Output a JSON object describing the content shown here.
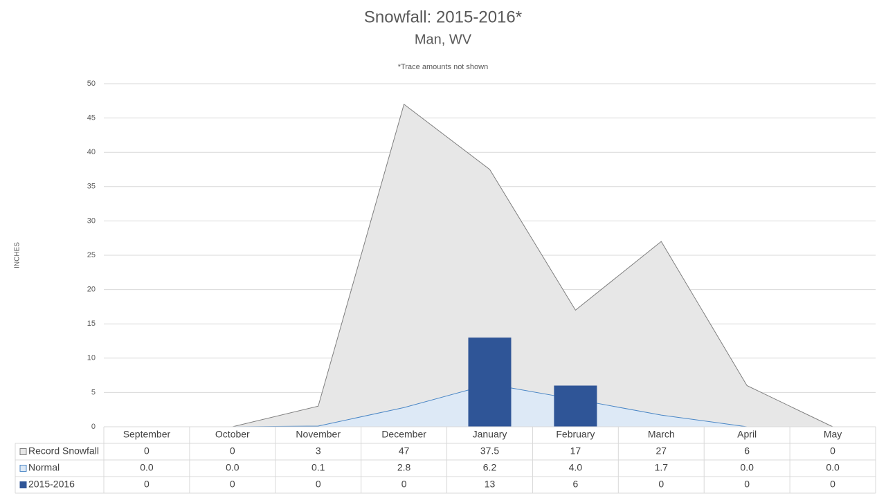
{
  "chart_data": {
    "type": "combo",
    "title": "Snowfall: 2015-2016*",
    "subtitle": "Man, WV",
    "annotation": "*Trace amounts not shown",
    "y_label": "INCHES",
    "categories": [
      "September",
      "October",
      "November",
      "December",
      "January",
      "February",
      "March",
      "April",
      "May"
    ],
    "series": [
      {
        "name": "Record Snowfall",
        "type": "area",
        "color": "#e7e7e7",
        "values": [
          0,
          0,
          3,
          47,
          37.5,
          17,
          27,
          6,
          0
        ]
      },
      {
        "name": "Normal",
        "type": "area",
        "color": "#dde9f6",
        "values": [
          0,
          0,
          0.1,
          2.8,
          6.2,
          4,
          1.7,
          0,
          0
        ],
        "value_labels": [
          "0.0",
          "0.0",
          "0.1",
          "2.8",
          "6.2",
          "4.0",
          "1.7",
          "0.0",
          "0.0"
        ]
      },
      {
        "name": "2015-2016",
        "type": "bar",
        "color": "#2f5597",
        "values": [
          0,
          0,
          0,
          0,
          13,
          6,
          0,
          0,
          0
        ]
      }
    ],
    "ylim": [
      0,
      50
    ],
    "yticks": [
      0,
      5,
      10,
      15,
      20,
      25,
      30,
      35,
      40,
      45,
      50
    ],
    "grid": true
  }
}
